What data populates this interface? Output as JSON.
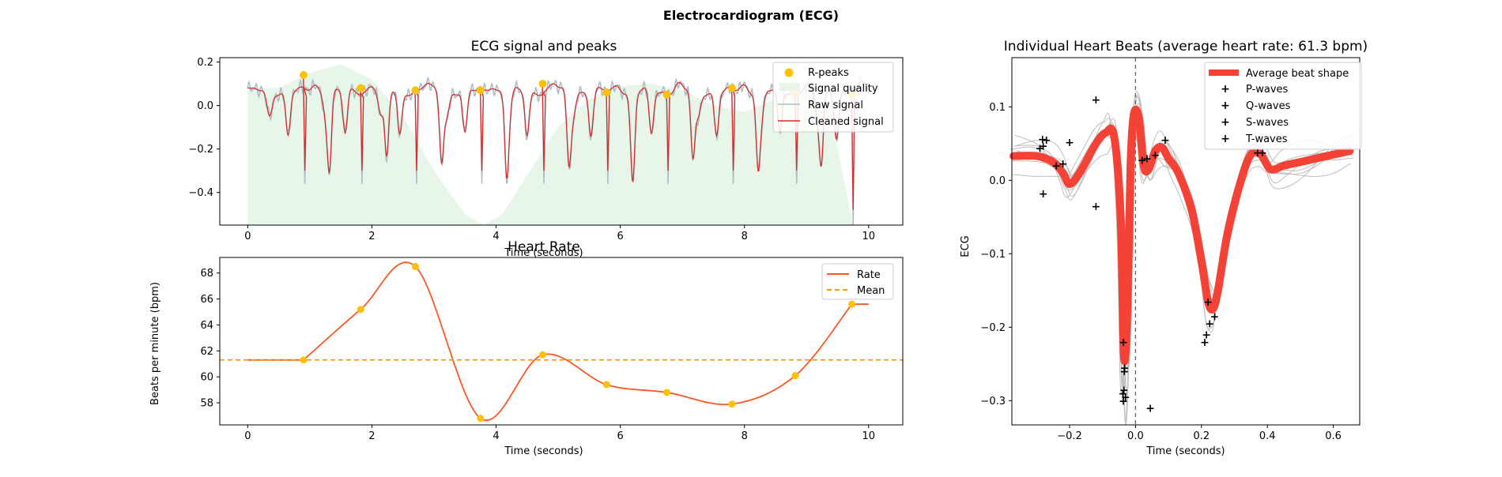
{
  "figure": {
    "suptitle": "Electrocardiogram (ECG)"
  },
  "colors": {
    "raw": "#b0bec5",
    "cleaned": "#d32f2f",
    "rpeak": "#ffc107",
    "quality": "#e8f5e9",
    "rate": "#ff5722",
    "mean": "#ff9800",
    "avg": "#f44336",
    "beat": "#bdbdbd",
    "pwave": "#3949ab",
    "qwave": "#1e88e5",
    "swave": "#039be5",
    "twave": "#00acc1"
  },
  "chart_data": [
    {
      "id": "ecg",
      "type": "line",
      "title": "ECG signal and peaks",
      "xlabel": "Time (seconds)",
      "ylabel": "",
      "xlim": [
        -0.45,
        10.55
      ],
      "ylim": [
        -0.55,
        0.22
      ],
      "xticks": [
        0,
        2,
        4,
        6,
        8,
        10
      ],
      "yticks": [
        -0.4,
        -0.2,
        0.0,
        0.2
      ],
      "grid": false,
      "legend": {
        "position": "top-right",
        "entries": [
          "R-peaks",
          "Signal quality",
          "Raw signal",
          "Cleaned signal"
        ]
      },
      "r_peaks": [
        [
          0.9,
          0.14
        ],
        [
          1.82,
          0.08
        ],
        [
          2.7,
          0.07
        ],
        [
          3.75,
          0.07
        ],
        [
          4.75,
          0.1
        ],
        [
          5.78,
          0.06
        ],
        [
          6.75,
          0.05
        ],
        [
          7.8,
          0.08
        ],
        [
          8.82,
          0.06
        ],
        [
          9.73,
          0.05
        ]
      ],
      "quality": [
        [
          0,
          0.08
        ],
        [
          0.5,
          0.08
        ],
        [
          1.0,
          0.15
        ],
        [
          1.5,
          0.19
        ],
        [
          2.0,
          0.12
        ],
        [
          2.5,
          -0.05
        ],
        [
          3.0,
          -0.3
        ],
        [
          3.5,
          -0.5
        ],
        [
          3.8,
          -0.55
        ],
        [
          4.1,
          -0.5
        ],
        [
          4.5,
          -0.32
        ],
        [
          5.0,
          -0.1
        ],
        [
          5.5,
          0.03
        ],
        [
          6.0,
          0.09
        ],
        [
          6.5,
          0.1
        ],
        [
          7.0,
          0.07
        ],
        [
          7.5,
          0.0
        ],
        [
          8.0,
          -0.03
        ],
        [
          8.5,
          0.03
        ],
        [
          9.0,
          0.08
        ],
        [
          9.3,
          0.05
        ],
        [
          9.5,
          -0.2
        ],
        [
          9.75,
          -0.55
        ]
      ]
    },
    {
      "id": "rate",
      "type": "line",
      "title": "Heart Rate",
      "xlabel": "Time (seconds)",
      "ylabel": "Beats per minute (bpm)",
      "xlim": [
        -0.45,
        10.55
      ],
      "ylim": [
        56.3,
        69.2
      ],
      "xticks": [
        0,
        2,
        4,
        6,
        8,
        10
      ],
      "yticks": [
        58,
        60,
        62,
        64,
        66,
        68
      ],
      "grid": false,
      "legend": {
        "position": "top-right",
        "entries": [
          "Rate",
          "Mean"
        ]
      },
      "points": [
        [
          0.9,
          61.3
        ],
        [
          1.82,
          65.2
        ],
        [
          2.7,
          68.5
        ],
        [
          3.75,
          56.8
        ],
        [
          4.75,
          61.7
        ],
        [
          5.78,
          59.4
        ],
        [
          6.75,
          58.8
        ],
        [
          7.8,
          57.9
        ],
        [
          8.82,
          60.1
        ],
        [
          9.73,
          65.6
        ]
      ],
      "start": [
        0.0,
        61.3
      ],
      "end": [
        10.0,
        65.6
      ],
      "mean": 61.3
    },
    {
      "id": "beats",
      "type": "line",
      "title": "Individual Heart Beats (average heart rate: 61.3 bpm)",
      "xlabel": "Time (seconds)",
      "ylabel": "ECG",
      "xlim": [
        -0.375,
        0.68
      ],
      "ylim": [
        -0.333,
        0.167
      ],
      "xticks": [
        -0.2,
        0.0,
        0.2,
        0.4,
        0.6
      ],
      "yticks": [
        -0.3,
        -0.2,
        -0.1,
        0.0,
        0.1
      ],
      "grid": false,
      "legend": {
        "position": "top-right",
        "entries": [
          "Average beat shape",
          "P-waves",
          "Q-waves",
          "S-waves",
          "T-waves"
        ]
      },
      "average": [
        [
          -0.37,
          0.033
        ],
        [
          -0.3,
          0.033
        ],
        [
          -0.25,
          0.025
        ],
        [
          -0.22,
          0.01
        ],
        [
          -0.2,
          -0.005
        ],
        [
          -0.17,
          0.01
        ],
        [
          -0.12,
          0.05
        ],
        [
          -0.09,
          0.065
        ],
        [
          -0.065,
          0.06
        ],
        [
          -0.045,
          -0.05
        ],
        [
          -0.035,
          -0.24
        ],
        [
          -0.025,
          -0.18
        ],
        [
          -0.015,
          0.02
        ],
        [
          -0.005,
          0.09
        ],
        [
          0.01,
          0.085
        ],
        [
          0.025,
          0.02
        ],
        [
          0.04,
          0.015
        ],
        [
          0.06,
          0.04
        ],
        [
          0.08,
          0.045
        ],
        [
          0.1,
          0.03
        ],
        [
          0.13,
          0.01
        ],
        [
          0.17,
          -0.04
        ],
        [
          0.2,
          -0.11
        ],
        [
          0.22,
          -0.165
        ],
        [
          0.235,
          -0.175
        ],
        [
          0.25,
          -0.15
        ],
        [
          0.28,
          -0.07
        ],
        [
          0.32,
          0.0
        ],
        [
          0.35,
          0.035
        ],
        [
          0.38,
          0.035
        ],
        [
          0.41,
          0.015
        ],
        [
          0.45,
          0.02
        ],
        [
          0.5,
          0.025
        ],
        [
          0.55,
          0.03
        ],
        [
          0.6,
          0.035
        ],
        [
          0.65,
          0.04
        ]
      ],
      "p_waves": [
        [
          -0.29,
          0.044
        ],
        [
          -0.282,
          0.056
        ],
        [
          -0.27,
          0.055
        ],
        [
          -0.28,
          0.047
        ],
        [
          -0.24,
          0.02
        ],
        [
          -0.22,
          0.023
        ],
        [
          -0.2,
          0.052
        ],
        [
          -0.12,
          0.11
        ],
        [
          -0.28,
          -0.018
        ]
      ],
      "q_waves": [
        [
          -0.037,
          -0.22
        ],
        [
          -0.034,
          -0.26
        ],
        [
          -0.038,
          -0.29
        ],
        [
          -0.035,
          -0.285
        ],
        [
          -0.03,
          -0.295
        ],
        [
          -0.037,
          -0.3
        ],
        [
          -0.033,
          -0.255
        ]
      ],
      "s_waves": [
        [
          0.21,
          -0.22
        ],
        [
          0.225,
          -0.195
        ],
        [
          0.22,
          -0.165
        ],
        [
          0.24,
          -0.185
        ],
        [
          0.215,
          -0.21
        ]
      ],
      "t_waves": [
        [
          0.02,
          0.028
        ],
        [
          0.035,
          0.03
        ],
        [
          0.06,
          0.035
        ],
        [
          0.09,
          0.055
        ],
        [
          0.37,
          0.038
        ],
        [
          0.385,
          0.038
        ],
        [
          -0.12,
          -0.035
        ],
        [
          0.045,
          -0.31
        ]
      ]
    }
  ]
}
